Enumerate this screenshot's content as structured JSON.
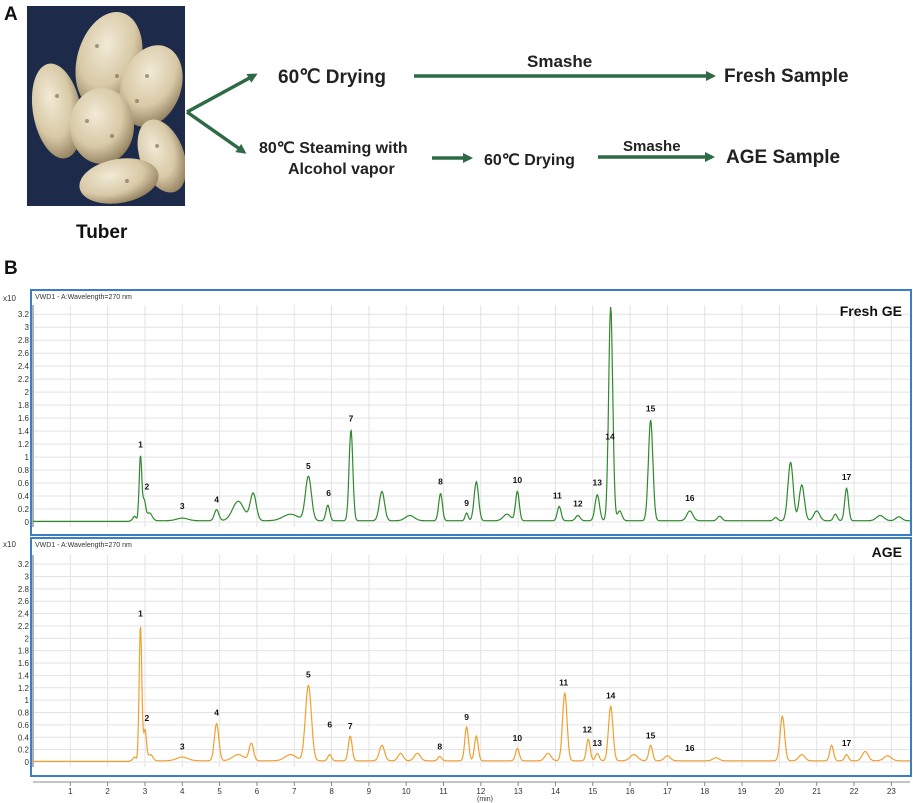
{
  "panel_a": {
    "letter": "A",
    "photo_caption": "Tuber",
    "top_step": "60℃ Drying",
    "top_arrow_label": "Smashe",
    "top_result": "Fresh Sample",
    "bottom_step_line1": "80℃ Steaming with",
    "bottom_step_line2": "Alcohol vapor",
    "bottom_step2": "60℃ Drying",
    "bottom_arrow_label": "Smashe",
    "bottom_result": "AGE Sample",
    "arrow_color": "#2e6b45"
  },
  "panel_b": {
    "letter": "B",
    "border_color": "#3a7ec4"
  },
  "chart_data": [
    {
      "type": "line",
      "title": "Fresh GE",
      "subtitle": "VWD1 - A:Wavelength=270 nm",
      "y_scale_label": "x10",
      "ylabel": "",
      "xlabel": "(min)",
      "x_ticks": [
        1,
        2,
        3,
        4,
        5,
        6,
        7,
        8,
        9,
        10,
        11,
        12,
        13,
        14,
        15,
        16,
        17,
        18,
        19,
        20,
        21,
        22,
        23
      ],
      "y_ticks": [
        "0",
        "0.2",
        "0.4",
        "0.6",
        "0.8",
        "1",
        "1.2",
        "1.4",
        "1.6",
        "1.8",
        "2",
        "2.2",
        "2.4",
        "2.6",
        "2.8",
        "3",
        "3.2"
      ],
      "xlim": [
        0,
        23.5
      ],
      "ylim": [
        -0.05,
        3.4
      ],
      "color": "#2f8a2f",
      "baseline": 0.02,
      "peaks": [
        {
          "x": 2.72,
          "h": 0.07,
          "w": 0.04
        },
        {
          "x": 2.88,
          "h": 1.0,
          "w": 0.035
        },
        {
          "x": 2.98,
          "h": 0.3,
          "w": 0.04
        },
        {
          "x": 3.12,
          "h": 0.12,
          "w": 0.07
        },
        {
          "x": 4.0,
          "h": 0.04,
          "w": 0.15
        },
        {
          "x": 4.92,
          "h": 0.17,
          "w": 0.06
        },
        {
          "x": 5.5,
          "h": 0.3,
          "w": 0.15
        },
        {
          "x": 5.9,
          "h": 0.42,
          "w": 0.08
        },
        {
          "x": 6.9,
          "h": 0.1,
          "w": 0.2
        },
        {
          "x": 7.38,
          "h": 0.68,
          "w": 0.08
        },
        {
          "x": 7.9,
          "h": 0.24,
          "w": 0.05
        },
        {
          "x": 8.52,
          "h": 1.4,
          "w": 0.05
        },
        {
          "x": 9.35,
          "h": 0.45,
          "w": 0.07
        },
        {
          "x": 10.1,
          "h": 0.08,
          "w": 0.12
        },
        {
          "x": 10.92,
          "h": 0.42,
          "w": 0.05
        },
        {
          "x": 11.62,
          "h": 0.12,
          "w": 0.04
        },
        {
          "x": 11.88,
          "h": 0.6,
          "w": 0.06
        },
        {
          "x": 12.7,
          "h": 0.1,
          "w": 0.1
        },
        {
          "x": 12.98,
          "h": 0.45,
          "w": 0.05
        },
        {
          "x": 14.1,
          "h": 0.22,
          "w": 0.05
        },
        {
          "x": 14.6,
          "h": 0.08,
          "w": 0.06
        },
        {
          "x": 15.12,
          "h": 0.4,
          "w": 0.06
        },
        {
          "x": 15.48,
          "h": 3.3,
          "w": 0.055
        },
        {
          "x": 15.72,
          "h": 0.15,
          "w": 0.06
        },
        {
          "x": 16.55,
          "h": 1.55,
          "w": 0.06
        },
        {
          "x": 17.6,
          "h": 0.15,
          "w": 0.08
        },
        {
          "x": 18.4,
          "h": 0.07,
          "w": 0.06
        },
        {
          "x": 19.9,
          "h": 0.05,
          "w": 0.05
        },
        {
          "x": 20.3,
          "h": 0.9,
          "w": 0.07
        },
        {
          "x": 20.6,
          "h": 0.55,
          "w": 0.07
        },
        {
          "x": 21.0,
          "h": 0.15,
          "w": 0.08
        },
        {
          "x": 21.5,
          "h": 0.1,
          "w": 0.05
        },
        {
          "x": 21.8,
          "h": 0.5,
          "w": 0.05
        },
        {
          "x": 22.7,
          "h": 0.08,
          "w": 0.1
        },
        {
          "x": 23.2,
          "h": 0.06,
          "w": 0.08
        }
      ],
      "labels": [
        {
          "text": "1",
          "x": 2.88,
          "y": 1.15
        },
        {
          "text": "2",
          "x": 3.05,
          "y": 0.5
        },
        {
          "text": "3",
          "x": 4.0,
          "y": 0.2
        },
        {
          "text": "4",
          "x": 4.92,
          "y": 0.3
        },
        {
          "text": "5",
          "x": 7.38,
          "y": 0.82
        },
        {
          "text": "6",
          "x": 7.92,
          "y": 0.4
        },
        {
          "text": "7",
          "x": 8.52,
          "y": 1.55
        },
        {
          "text": "8",
          "x": 10.92,
          "y": 0.58
        },
        {
          "text": "9",
          "x": 11.62,
          "y": 0.25
        },
        {
          "text": "10",
          "x": 12.98,
          "y": 0.6
        },
        {
          "text": "11",
          "x": 14.05,
          "y": 0.36
        },
        {
          "text": "12",
          "x": 14.6,
          "y": 0.24
        },
        {
          "text": "13",
          "x": 15.12,
          "y": 0.56
        },
        {
          "text": "14",
          "x": 15.46,
          "y": 1.27
        },
        {
          "text": "15",
          "x": 16.55,
          "y": 1.7
        },
        {
          "text": "16",
          "x": 17.6,
          "y": 0.32
        },
        {
          "text": "17",
          "x": 21.8,
          "y": 0.65
        }
      ]
    },
    {
      "type": "line",
      "title": "AGE",
      "subtitle": "VWD1 - A:Wavelength=270 nm",
      "y_scale_label": "x10",
      "ylabel": "",
      "xlabel": "(min)",
      "x_ticks": [
        1,
        2,
        3,
        4,
        5,
        6,
        7,
        8,
        9,
        10,
        11,
        12,
        13,
        14,
        15,
        16,
        17,
        18,
        19,
        20,
        21,
        22,
        23
      ],
      "y_ticks": [
        "0",
        "0.2",
        "0.4",
        "0.6",
        "0.8",
        "1",
        "1.2",
        "1.4",
        "1.6",
        "1.8",
        "2",
        "2.2",
        "2.4",
        "2.6",
        "2.8",
        "3",
        "3.2"
      ],
      "xlim": [
        0,
        23.5
      ],
      "ylim": [
        -0.05,
        3.4
      ],
      "color": "#f0a030",
      "baseline": 0.02,
      "peaks": [
        {
          "x": 2.72,
          "h": 0.06,
          "w": 0.04
        },
        {
          "x": 2.88,
          "h": 2.2,
          "w": 0.035
        },
        {
          "x": 3.0,
          "h": 0.5,
          "w": 0.04
        },
        {
          "x": 3.15,
          "h": 0.1,
          "w": 0.06
        },
        {
          "x": 4.0,
          "h": 0.06,
          "w": 0.15
        },
        {
          "x": 4.92,
          "h": 0.6,
          "w": 0.06
        },
        {
          "x": 5.5,
          "h": 0.1,
          "w": 0.15
        },
        {
          "x": 5.85,
          "h": 0.28,
          "w": 0.06
        },
        {
          "x": 6.9,
          "h": 0.1,
          "w": 0.15
        },
        {
          "x": 7.38,
          "h": 1.22,
          "w": 0.08
        },
        {
          "x": 7.95,
          "h": 0.1,
          "w": 0.05
        },
        {
          "x": 8.5,
          "h": 0.4,
          "w": 0.05
        },
        {
          "x": 9.35,
          "h": 0.25,
          "w": 0.07
        },
        {
          "x": 9.85,
          "h": 0.12,
          "w": 0.07
        },
        {
          "x": 10.3,
          "h": 0.12,
          "w": 0.08
        },
        {
          "x": 10.9,
          "h": 0.07,
          "w": 0.05
        },
        {
          "x": 11.62,
          "h": 0.55,
          "w": 0.05
        },
        {
          "x": 11.88,
          "h": 0.4,
          "w": 0.05
        },
        {
          "x": 12.98,
          "h": 0.2,
          "w": 0.05
        },
        {
          "x": 13.8,
          "h": 0.12,
          "w": 0.08
        },
        {
          "x": 14.25,
          "h": 1.1,
          "w": 0.06
        },
        {
          "x": 14.88,
          "h": 0.35,
          "w": 0.05
        },
        {
          "x": 15.12,
          "h": 0.12,
          "w": 0.05
        },
        {
          "x": 15.48,
          "h": 0.88,
          "w": 0.06
        },
        {
          "x": 16.1,
          "h": 0.1,
          "w": 0.1
        },
        {
          "x": 16.55,
          "h": 0.25,
          "w": 0.05
        },
        {
          "x": 17.0,
          "h": 0.08,
          "w": 0.08
        },
        {
          "x": 18.3,
          "h": 0.05,
          "w": 0.08
        },
        {
          "x": 20.08,
          "h": 0.72,
          "w": 0.06
        },
        {
          "x": 20.6,
          "h": 0.1,
          "w": 0.08
        },
        {
          "x": 21.4,
          "h": 0.25,
          "w": 0.05
        },
        {
          "x": 21.8,
          "h": 0.1,
          "w": 0.05
        },
        {
          "x": 22.3,
          "h": 0.15,
          "w": 0.08
        },
        {
          "x": 22.9,
          "h": 0.08,
          "w": 0.1
        }
      ],
      "labels": [
        {
          "text": "1",
          "x": 2.88,
          "y": 2.35
        },
        {
          "text": "2",
          "x": 3.05,
          "y": 0.66
        },
        {
          "text": "3",
          "x": 4.0,
          "y": 0.2
        },
        {
          "text": "4",
          "x": 4.92,
          "y": 0.75
        },
        {
          "text": "5",
          "x": 7.38,
          "y": 1.37
        },
        {
          "text": "6",
          "x": 7.95,
          "y": 0.56
        },
        {
          "text": "7",
          "x": 8.5,
          "y": 0.53
        },
        {
          "text": "8",
          "x": 10.9,
          "y": 0.2
        },
        {
          "text": "9",
          "x": 11.62,
          "y": 0.68
        },
        {
          "text": "10",
          "x": 12.98,
          "y": 0.34
        },
        {
          "text": "11",
          "x": 14.22,
          "y": 1.24
        },
        {
          "text": "12",
          "x": 14.85,
          "y": 0.48
        },
        {
          "text": "13",
          "x": 15.12,
          "y": 0.26
        },
        {
          "text": "14",
          "x": 15.48,
          "y": 1.03
        },
        {
          "text": "15",
          "x": 16.55,
          "y": 0.38
        },
        {
          "text": "16",
          "x": 17.6,
          "y": 0.18
        },
        {
          "text": "17",
          "x": 21.8,
          "y": 0.26
        }
      ]
    }
  ]
}
